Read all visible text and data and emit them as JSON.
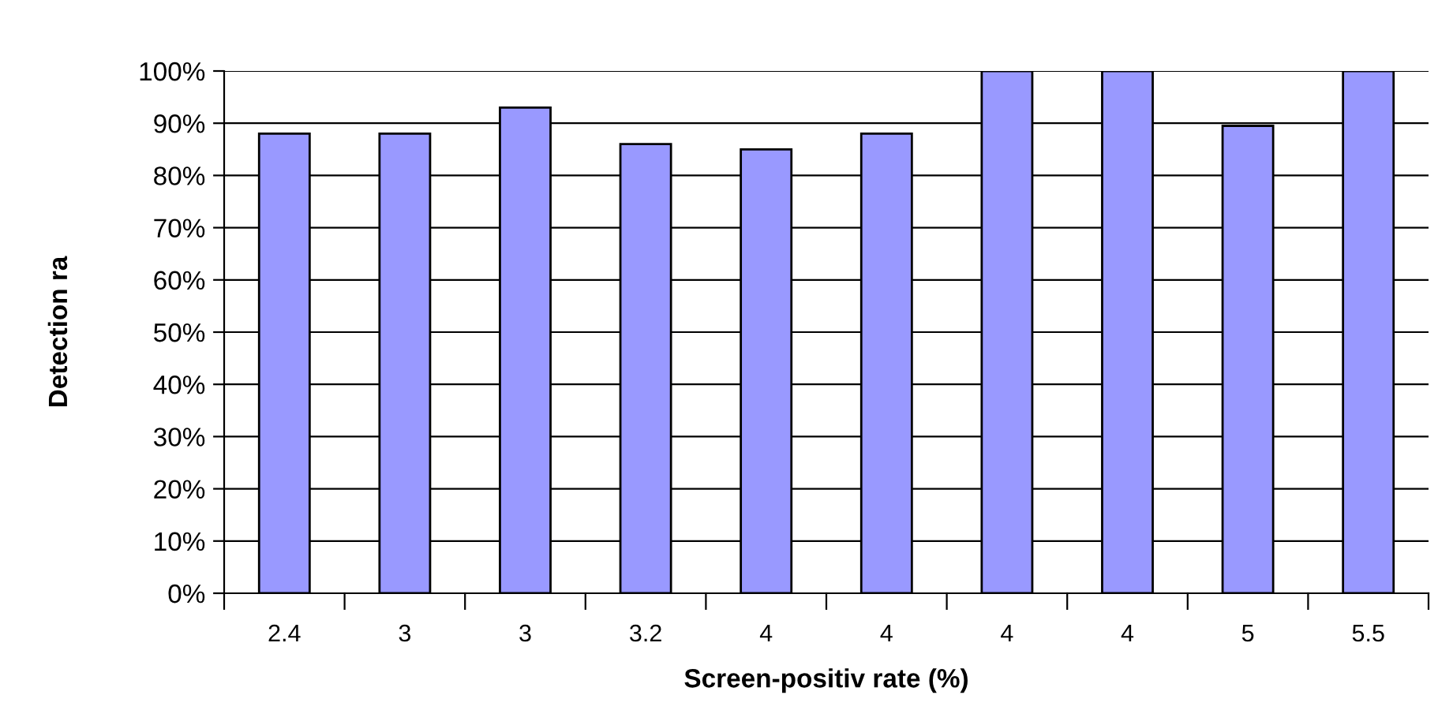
{
  "chart_data": {
    "type": "bar",
    "xlabel": "Screen-positiv rate (%)",
    "ylabel": "Detection ra",
    "categories": [
      "2.4",
      "3",
      "3",
      "3.2",
      "4",
      "4",
      "4",
      "4",
      "5",
      "5.5"
    ],
    "values": [
      88,
      88,
      93,
      86,
      85,
      88,
      100,
      100,
      89.5,
      100
    ],
    "color": "#9999ff",
    "ylim": [
      0,
      100
    ],
    "yticks": [
      {
        "value": 0,
        "label": "0%"
      },
      {
        "value": 10,
        "label": "10%"
      },
      {
        "value": 20,
        "label": "20%"
      },
      {
        "value": 30,
        "label": "30%"
      },
      {
        "value": 40,
        "label": "40%"
      },
      {
        "value": 50,
        "label": "50%"
      },
      {
        "value": 60,
        "label": "60%"
      },
      {
        "value": 70,
        "label": "70%"
      },
      {
        "value": 80,
        "label": "80%"
      },
      {
        "value": 90,
        "label": "90%"
      },
      {
        "value": 100,
        "label": "100%"
      }
    ],
    "grid": "y"
  }
}
